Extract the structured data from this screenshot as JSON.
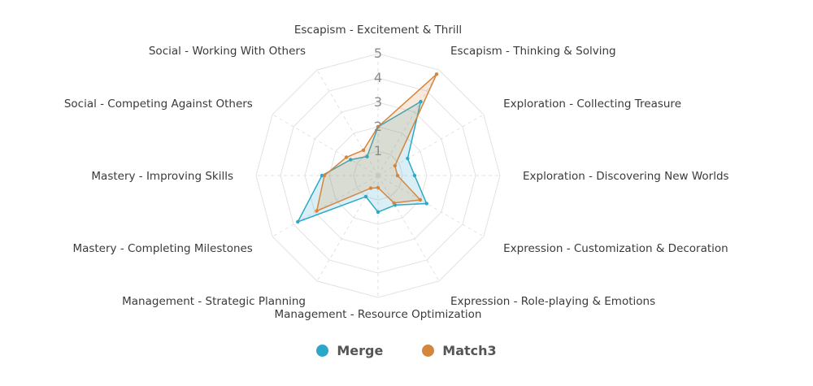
{
  "chart_data": {
    "type": "radar",
    "title": "",
    "axes": [
      "Escapism - Excitement & Thrill",
      "Escapism - Thinking & Solving",
      "Exploration - Collecting Treasure",
      "Exploration - Discovering New Worlds",
      "Expression - Customization & Decoration",
      "Expression - Role-playing & Emotions",
      "Management - Resource Optimization",
      "Management - Strategic Planning",
      "Mastery - Completing Milestones",
      "Mastery - Improving Skills",
      "Social - Competing Against Others",
      "Social - Working With Others"
    ],
    "ticks": [
      "1",
      "2",
      "3",
      "4",
      "5"
    ],
    "rmax": 5,
    "grid": true,
    "legend_position": "bottom",
    "series": [
      {
        "name": "Merge",
        "color": "#2ba8c7",
        "fill": "rgba(43,168,199,0.18)",
        "values": [
          2.0,
          3.5,
          1.4,
          1.5,
          2.3,
          1.4,
          1.5,
          1.0,
          3.8,
          2.3,
          1.3,
          0.9
        ]
      },
      {
        "name": "Match3",
        "color": "#d4853e",
        "fill": "rgba(212,133,62,0.18)",
        "values": [
          2.0,
          4.8,
          0.8,
          0.8,
          2.0,
          1.3,
          0.5,
          0.6,
          2.9,
          2.2,
          1.5,
          1.2
        ]
      }
    ]
  }
}
